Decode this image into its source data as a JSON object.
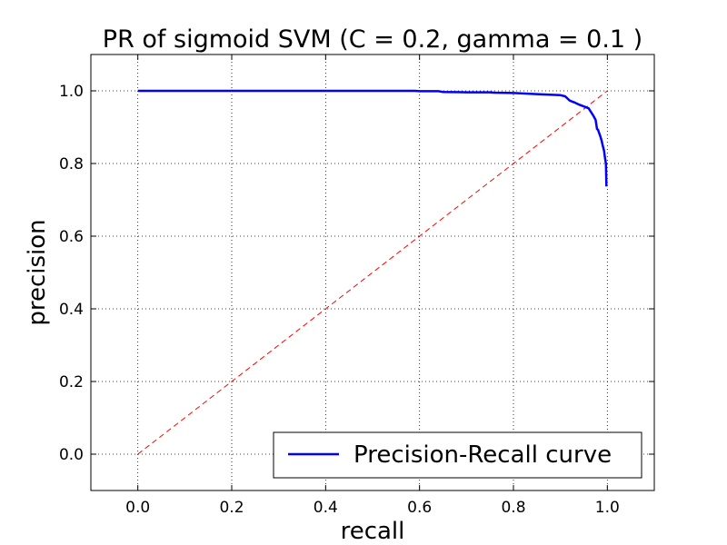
{
  "chart_data": {
    "type": "line",
    "title": "PR of sigmoid SVM (C = 0.2, gamma = 0.1 )",
    "xlabel": "recall",
    "ylabel": "precision",
    "xlim": [
      -0.1,
      1.1
    ],
    "ylim": [
      -0.1,
      1.1
    ],
    "xticks": [
      "0.0",
      "0.2",
      "0.4",
      "0.6",
      "0.8",
      "1.0"
    ],
    "yticks": [
      "0.0",
      "0.2",
      "0.4",
      "0.6",
      "0.8",
      "1.0"
    ],
    "grid": true,
    "legend_position": "lower-right",
    "series": [
      {
        "name": "Precision-Recall curve",
        "color": "#0000ff",
        "style": "solid",
        "x": [
          0.0,
          0.1,
          0.2,
          0.3,
          0.4,
          0.5,
          0.59,
          0.6,
          0.64,
          0.65,
          0.7,
          0.75,
          0.76,
          0.8,
          0.85,
          0.9,
          0.91,
          0.92,
          0.93,
          0.94,
          0.95,
          0.96,
          0.965,
          0.97,
          0.975,
          0.978,
          0.98,
          0.985,
          0.988,
          0.99,
          0.993,
          0.995,
          0.997,
          0.998,
          1.0
        ],
        "y": [
          1.0,
          1.0,
          1.0,
          1.0,
          1.0,
          1.0,
          1.0,
          0.999,
          0.999,
          0.997,
          0.996,
          0.996,
          0.995,
          0.994,
          0.991,
          0.988,
          0.985,
          0.973,
          0.968,
          0.962,
          0.957,
          0.952,
          0.942,
          0.932,
          0.92,
          0.895,
          0.893,
          0.875,
          0.862,
          0.85,
          0.835,
          0.815,
          0.8,
          0.74,
          0.74
        ]
      },
      {
        "name": "",
        "color": "#ff0000",
        "style": "dashed",
        "x": [
          0.0,
          1.0
        ],
        "y": [
          0.0,
          1.0
        ]
      }
    ]
  }
}
